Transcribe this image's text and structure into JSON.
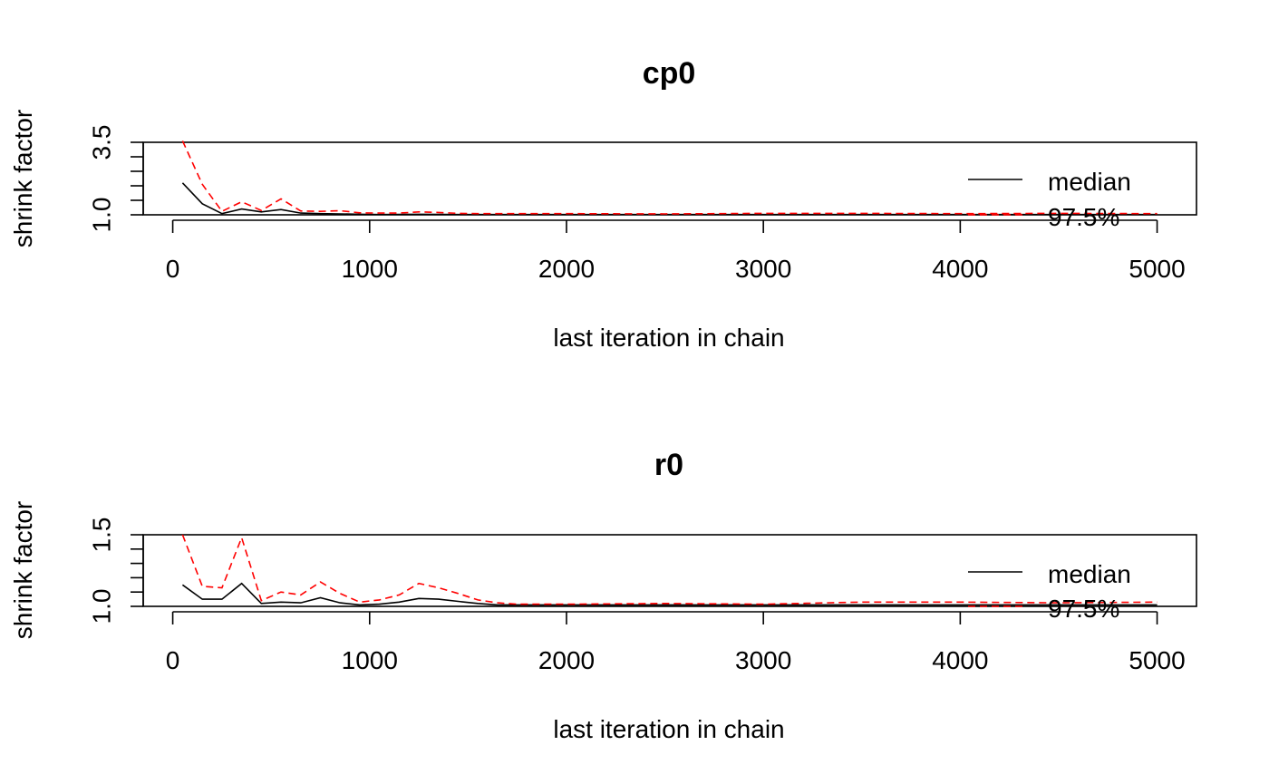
{
  "chart_data": [
    {
      "type": "line",
      "title": "cp0",
      "xlabel": "last iteration in chain",
      "ylabel": "shrink factor",
      "xlim": [
        -150,
        5200
      ],
      "ylim": [
        1.0,
        3.5
      ],
      "xticks": [
        0,
        1000,
        2000,
        3000,
        4000,
        5000
      ],
      "xtick_labels": [
        "0",
        "1000",
        "2000",
        "3000",
        "4000",
        "5000"
      ],
      "yticks": [
        1.0,
        1.5,
        2.0,
        2.5,
        3.0,
        3.5
      ],
      "ytick_labels": [
        "1.0",
        "",
        "",
        "",
        "",
        "3.5"
      ],
      "grid": false,
      "legend": {
        "placement": "right",
        "entries": [
          "median",
          "97.5%"
        ]
      },
      "series": [
        {
          "name": "median",
          "color": "#000000",
          "dash": "solid",
          "x": [
            50,
            150,
            250,
            350,
            450,
            550,
            650,
            750,
            850,
            950,
            1050,
            1250,
            1500,
            2000,
            2500,
            3000,
            3500,
            4000,
            4500,
            5000
          ],
          "values": [
            2.1,
            1.38,
            1.04,
            1.2,
            1.1,
            1.18,
            1.06,
            1.04,
            1.03,
            1.02,
            1.01,
            1.02,
            1.01,
            1.01,
            1.01,
            1.01,
            1.01,
            1.01,
            1.01,
            1.01
          ]
        },
        {
          "name": "97.5%",
          "color": "#ff0000",
          "dash": "dashed",
          "x": [
            50,
            150,
            250,
            350,
            450,
            550,
            650,
            750,
            850,
            950,
            1050,
            1150,
            1250,
            1350,
            1450,
            1550,
            1750,
            2000,
            2500,
            3000,
            3500,
            4000,
            4500,
            5000
          ],
          "values": [
            3.55,
            2.05,
            1.12,
            1.45,
            1.15,
            1.55,
            1.13,
            1.12,
            1.14,
            1.07,
            1.06,
            1.06,
            1.1,
            1.08,
            1.05,
            1.04,
            1.04,
            1.04,
            1.03,
            1.05,
            1.05,
            1.04,
            1.05,
            1.04
          ]
        }
      ]
    },
    {
      "type": "line",
      "title": "r0",
      "xlabel": "last iteration in chain",
      "ylabel": "shrink factor",
      "xlim": [
        -150,
        5200
      ],
      "ylim": [
        1.0,
        1.5
      ],
      "xticks": [
        0,
        1000,
        2000,
        3000,
        4000,
        5000
      ],
      "xtick_labels": [
        "0",
        "1000",
        "2000",
        "3000",
        "4000",
        "5000"
      ],
      "yticks": [
        1.0,
        1.1,
        1.2,
        1.3,
        1.4,
        1.5
      ],
      "ytick_labels": [
        "1.0",
        "",
        "",
        "",
        "",
        "1.5"
      ],
      "grid": false,
      "legend": {
        "placement": "right",
        "entries": [
          "median",
          "97.5%"
        ]
      },
      "series": [
        {
          "name": "median",
          "color": "#000000",
          "dash": "solid",
          "x": [
            50,
            150,
            250,
            350,
            450,
            550,
            650,
            750,
            850,
            950,
            1050,
            1150,
            1250,
            1350,
            1450,
            1550,
            1650,
            2000,
            2500,
            3000,
            3500,
            4000,
            4500,
            5000
          ],
          "values": [
            1.15,
            1.05,
            1.05,
            1.16,
            1.02,
            1.03,
            1.025,
            1.06,
            1.025,
            1.01,
            1.015,
            1.03,
            1.055,
            1.05,
            1.035,
            1.02,
            1.01,
            1.01,
            1.01,
            1.01,
            1.01,
            1.01,
            1.01,
            1.01
          ]
        },
        {
          "name": "97.5%",
          "color": "#ff0000",
          "dash": "dashed",
          "x": [
            50,
            150,
            250,
            350,
            450,
            550,
            650,
            750,
            850,
            950,
            1050,
            1150,
            1250,
            1350,
            1450,
            1550,
            1650,
            1750,
            2000,
            2500,
            3000,
            3500,
            4000,
            4500,
            5000
          ],
          "values": [
            1.5,
            1.14,
            1.13,
            1.48,
            1.04,
            1.1,
            1.08,
            1.17,
            1.09,
            1.03,
            1.045,
            1.08,
            1.16,
            1.13,
            1.09,
            1.045,
            1.025,
            1.015,
            1.015,
            1.02,
            1.015,
            1.03,
            1.03,
            1.025,
            1.03
          ]
        }
      ]
    }
  ]
}
